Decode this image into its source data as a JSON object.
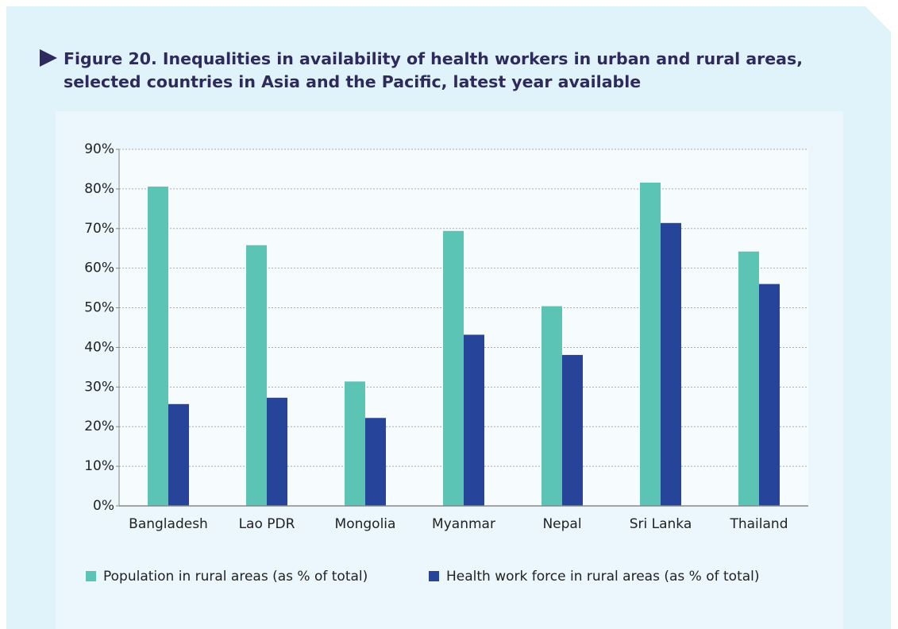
{
  "chart_data": {
    "type": "bar",
    "title": "Figure 20. Inequalities in availability of health workers in urban and rural areas, selected countries in Asia and the Pacific, latest year available",
    "categories": [
      "Bangladesh",
      "Lao PDR",
      "Mongolia",
      "Myanmar",
      "Nepal",
      "Sri Lanka",
      "Thailand"
    ],
    "series": [
      {
        "name": "Population in rural areas (as % of total)",
        "color": "#5bc4b4",
        "values": [
          80.6,
          65.8,
          31.4,
          69.4,
          50.4,
          81.6,
          64.2
        ]
      },
      {
        "name": "Health work force in rural areas (as % of total)",
        "color": "#25449a",
        "values": [
          25.7,
          27.3,
          22.2,
          43.2,
          38.1,
          71.4,
          56.0
        ]
      }
    ],
    "ylim": [
      0,
      90
    ],
    "yticks": [
      {
        "value": 0,
        "label": "0%"
      },
      {
        "value": 10,
        "label": "10%"
      },
      {
        "value": 20,
        "label": "20%"
      },
      {
        "value": 30,
        "label": "30%"
      },
      {
        "value": 40,
        "label": "40%"
      },
      {
        "value": 50,
        "label": "50%"
      },
      {
        "value": 60,
        "label": "60%"
      },
      {
        "value": 70,
        "label": "70%"
      },
      {
        "value": 80,
        "label": "80%"
      },
      {
        "value": 90,
        "label": "90%"
      }
    ],
    "grid": true,
    "legend": "bottom"
  }
}
